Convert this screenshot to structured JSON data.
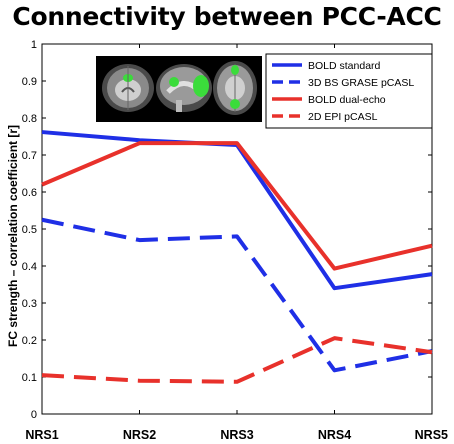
{
  "chart_data": {
    "type": "line",
    "title": "Connectivity between PCC-ACC",
    "ylabel": "FC strength – correlation coefficient [r]",
    "xlabel": "",
    "categories": [
      "NRS1",
      "NRS2",
      "NRS3",
      "NRS4",
      "NRS5"
    ],
    "ylim": [
      0,
      1
    ],
    "yticks": [
      "0",
      "0.1",
      "0.2",
      "0.3",
      "0.4",
      "0.5",
      "0.6",
      "0.7",
      "0.8",
      "0.9",
      "1"
    ],
    "grid": false,
    "legend_position": "top-right",
    "series": [
      {
        "name": "BOLD standard",
        "color": "#1f2fe6",
        "dash": "solid",
        "values": [
          0.762,
          0.74,
          0.727,
          0.34,
          0.378
        ]
      },
      {
        "name": "3D BS GRASE pCASL",
        "color": "#1f2fe6",
        "dash": "dashed",
        "values": [
          0.525,
          0.47,
          0.48,
          0.118,
          0.17
        ]
      },
      {
        "name": "BOLD dual-echo",
        "color": "#e8312b",
        "dash": "solid",
        "values": [
          0.62,
          0.732,
          0.732,
          0.393,
          0.455
        ]
      },
      {
        "name": "2D EPI pCASL",
        "color": "#e8312b",
        "dash": "dashed",
        "values": [
          0.105,
          0.09,
          0.087,
          0.205,
          0.167
        ]
      }
    ],
    "inset_image": "brain-slices-thumbnail"
  }
}
